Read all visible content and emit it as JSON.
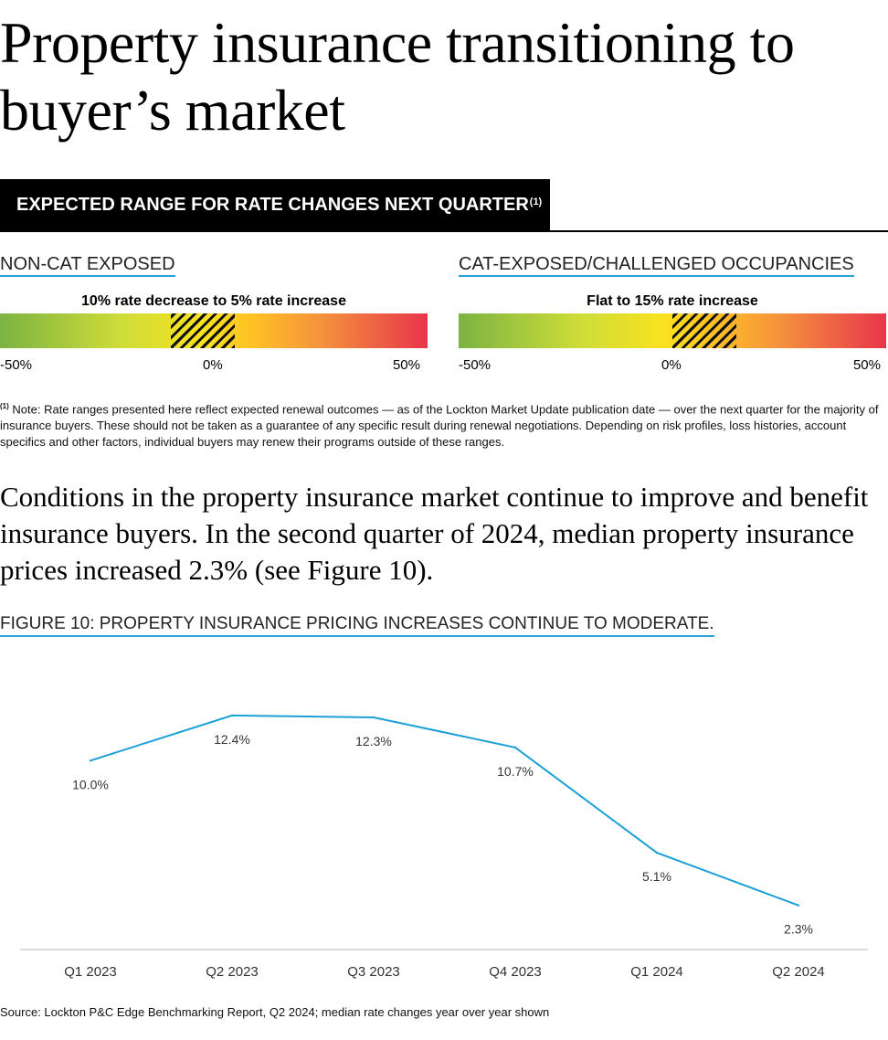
{
  "title": "Property insurance transitioning to buyer’s market",
  "banner": {
    "text": "EXPECTED RANGE FOR RATE CHANGES NEXT QUARTER",
    "footnote_mark": "(1)"
  },
  "scales": [
    {
      "label": "NON-CAT EXPOSED",
      "range_text": "10% rate decrease to 5% rate increase",
      "range_min": -10,
      "range_max": 5,
      "ticks": [
        "-50%",
        "0%",
        "50%"
      ]
    },
    {
      "label": "CAT-EXPOSED/CHALLENGED OCCUPANCIES",
      "range_text": "Flat to 15% rate increase",
      "range_min": 0,
      "range_max": 15,
      "ticks": [
        "-50%",
        "0%",
        "50%"
      ]
    }
  ],
  "note": {
    "mark": "(1)",
    "text": " Note: Rate ranges presented here reflect expected renewal outcomes — as of the Lockton Market Update publication date — over the next quarter for the majority of insurance buyers. These should not be taken as a guarantee of any specific result during renewal negotiations. Depending on risk profiles, loss histories, account specifics and other factors, individual buyers may renew their programs outside of these ranges."
  },
  "lede": "Conditions in the property insurance market continue to improve and benefit insurance buyers. In the second quarter of 2024, median property insurance prices increased 2.3% (see Figure 10).",
  "figure_caption": "FIGURE 10: PROPERTY INSURANCE PRICING INCREASES CONTINUE TO MODERATE.",
  "chart_data": {
    "type": "line",
    "categories": [
      "Q1 2023",
      "Q2 2023",
      "Q3 2023",
      "Q4 2023",
      "Q1 2024",
      "Q2 2024"
    ],
    "series": [
      {
        "values": [
          10.0,
          12.4,
          12.3,
          10.7,
          5.1,
          2.3
        ],
        "color": "#1aa1d8"
      }
    ],
    "data_labels": [
      "10.0%",
      "12.4%",
      "12.3%",
      "10.7%",
      "5.1%",
      "2.3%"
    ],
    "ylim": [
      0,
      14
    ],
    "grid": false,
    "title": "",
    "xlabel": "",
    "ylabel": ""
  },
  "source": "Source: Lockton P&C Edge Benchmarking Report, Q2 2024; median rate changes year over year shown"
}
